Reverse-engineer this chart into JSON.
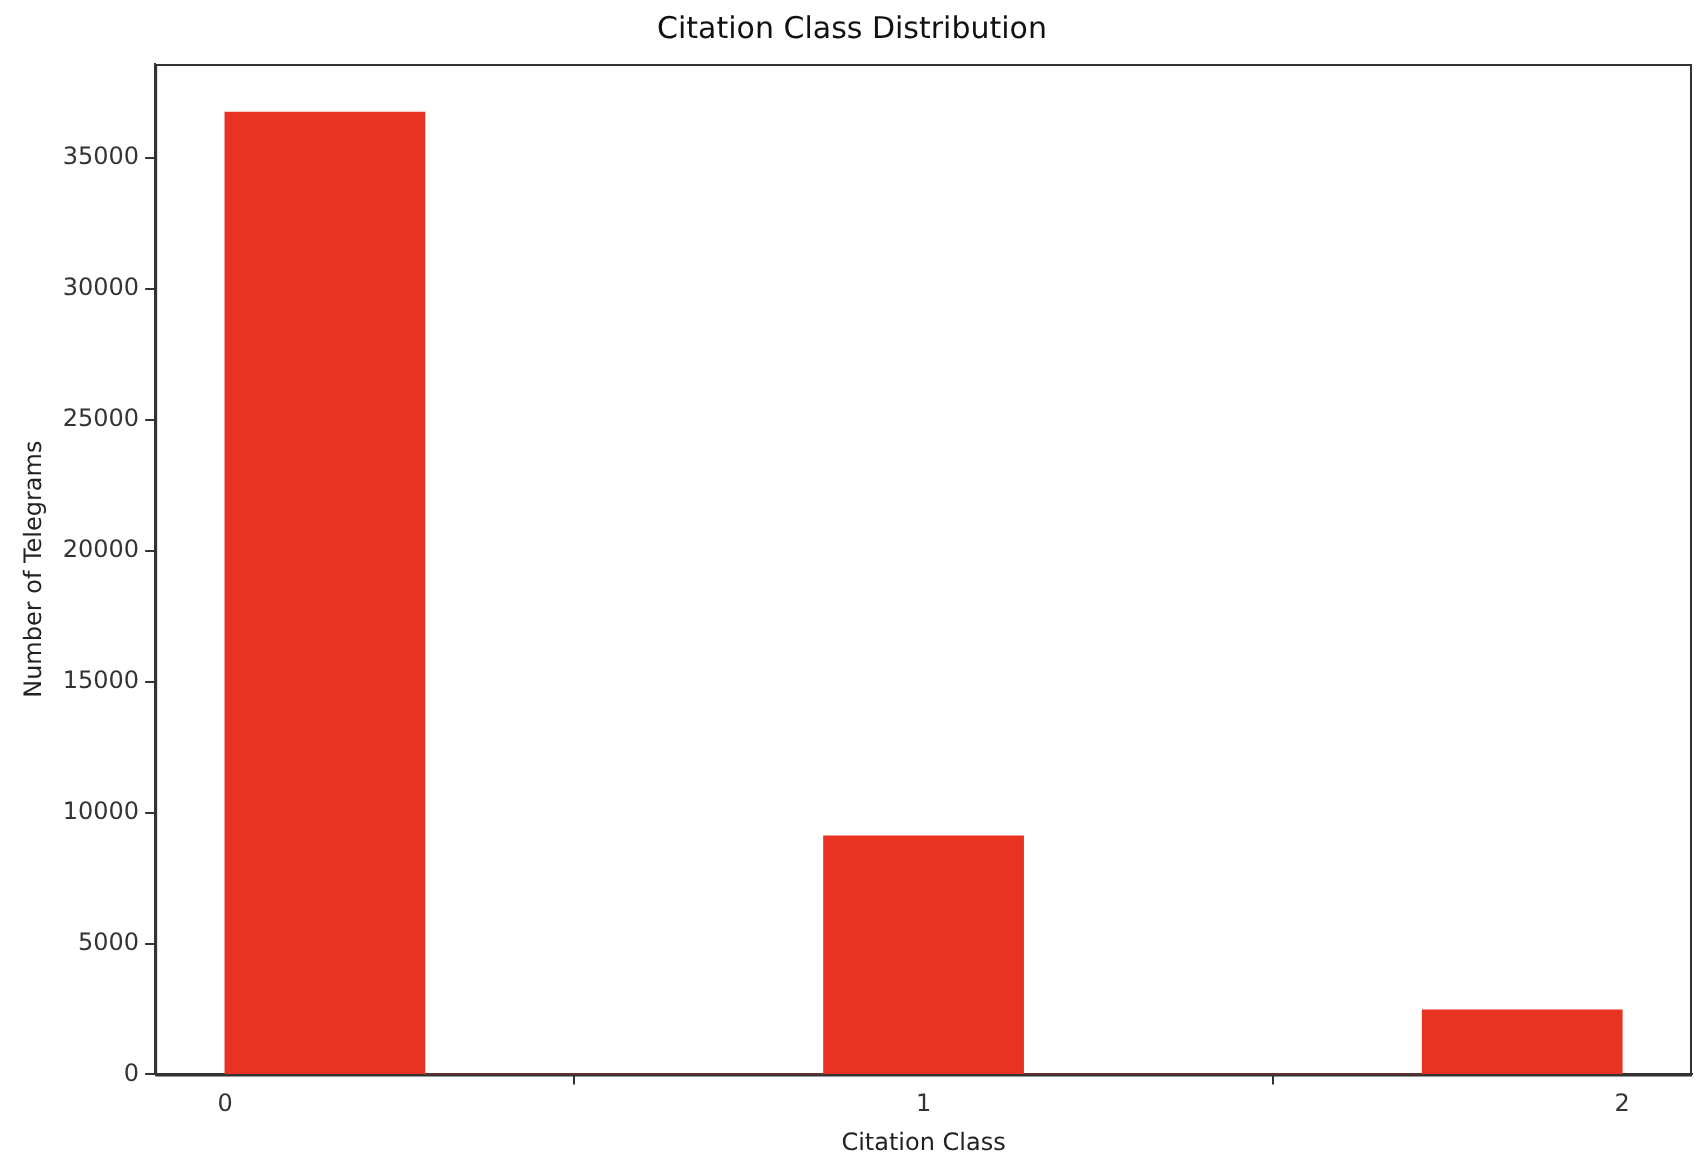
{
  "chart_data": {
    "type": "histogram",
    "title": "Citation Class Distribution",
    "xlabel": "Citation Class",
    "ylabel": "Number of Telegrams",
    "bins": [
      0,
      0.286,
      0.571,
      0.857,
      1.143,
      1.429,
      1.714,
      2
    ],
    "values": [
      36750,
      0,
      0,
      9100,
      0,
      0,
      2450
    ],
    "color": "#e83323",
    "xlim": [
      -0.1,
      2.1
    ],
    "xticks": [
      0,
      1,
      2
    ],
    "ylim": [
      0,
      38600
    ],
    "yticks": [
      0,
      5000,
      10000,
      15000,
      20000,
      25000,
      30000,
      35000
    ],
    "grid": false,
    "legend": false
  }
}
